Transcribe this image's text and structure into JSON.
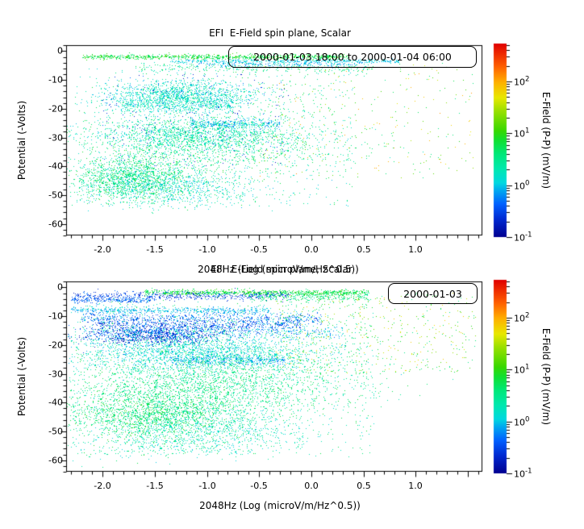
{
  "window": {
    "background": "#ffffff",
    "frame_color": "#000000",
    "text_color": "#000000"
  },
  "colorbar": {
    "label": "E-Field (P-P) (mV/m)",
    "tick_exponents": [
      2,
      1,
      0,
      -1
    ],
    "tick_labels": [
      "10^2",
      "10^1",
      "10^0",
      "10^-1"
    ],
    "log_min": -1,
    "log_max": 2.73,
    "stops": [
      [
        0.0,
        "#000090"
      ],
      [
        0.09,
        "#0028d0"
      ],
      [
        0.17,
        "#0060ff"
      ],
      [
        0.24,
        "#00a8f0"
      ],
      [
        0.28,
        "#00d8e0"
      ],
      [
        0.35,
        "#00e8b0"
      ],
      [
        0.43,
        "#00e878"
      ],
      [
        0.5,
        "#10e030"
      ],
      [
        0.55,
        "#38d800"
      ],
      [
        0.65,
        "#98e000"
      ],
      [
        0.72,
        "#e8e800"
      ],
      [
        0.8,
        "#ffb000"
      ],
      [
        0.88,
        "#ff6000"
      ],
      [
        1.0,
        "#e00000"
      ]
    ]
  },
  "chart_data": [
    {
      "type": "scatter",
      "title": "EFI  E-Field spin plane, Scalar",
      "legend": "2000-01-03 18:00 to 2000-01-04 06:00",
      "xlabel": "2048Hz (Log (microV/m/Hz^0.5))",
      "ylabel": "Potential (-Volts)",
      "xlim": [
        -2.35,
        1.64
      ],
      "ylim": [
        -64,
        2.1
      ],
      "x_ticks": [
        -2.0,
        -1.5,
        -1.0,
        -0.5,
        0.0,
        0.5,
        1.0
      ],
      "x_tick_labels": [
        "-2.0",
        "-1.5",
        "-1.0",
        "-0.5",
        "0.0",
        "0.5",
        "1.0"
      ],
      "x_minor_step": 0.1,
      "y_ticks": [
        0,
        -10,
        -20,
        -30,
        -40,
        -50,
        -60
      ],
      "y_tick_labels": [
        "0",
        "-10",
        "-20",
        "-30",
        "-40",
        "-50",
        "-60"
      ],
      "y_minor_step": 2,
      "grid": false,
      "color_value": "log10 E-Field (P-P) mV/m",
      "point_clusters": [
        {
          "type": "band",
          "x0": -2.2,
          "x1": 0.35,
          "yc": -2.0,
          "ys": 0.45,
          "n": 850,
          "amp": [
            0.55,
            1.15
          ]
        },
        {
          "type": "band",
          "x0": -1.35,
          "x1": 0.85,
          "yc": -3.5,
          "ys": 0.35,
          "n": 420,
          "amp": [
            -0.15,
            0.25
          ]
        },
        {
          "type": "band",
          "x0": -1.1,
          "x1": 0.5,
          "yc": -4.6,
          "ys": 0.45,
          "n": 200,
          "amp": [
            -0.3,
            0.15
          ]
        },
        {
          "type": "band",
          "x0": -1.7,
          "x1": 0.6,
          "yc": -5.9,
          "ys": 1.0,
          "n": 300,
          "amp": [
            0.2,
            0.85
          ]
        },
        {
          "type": "gauss",
          "xc": -1.25,
          "xs": 0.38,
          "yc": -15.5,
          "ys": 2.6,
          "n": 1350,
          "amp": [
            -0.1,
            0.6
          ]
        },
        {
          "type": "band",
          "x0": -1.85,
          "x1": -0.75,
          "yc": -19.0,
          "ys": 1.2,
          "n": 380,
          "amp": [
            0.0,
            0.5
          ]
        },
        {
          "type": "band",
          "x0": -1.15,
          "x1": -0.3,
          "yc": -25.3,
          "ys": 0.9,
          "n": 330,
          "amp": [
            -0.3,
            0.3
          ]
        },
        {
          "type": "gauss",
          "xc": -1.15,
          "xs": 0.5,
          "yc": -29.0,
          "ys": 3.0,
          "n": 1250,
          "amp": [
            0.0,
            0.7
          ]
        },
        {
          "type": "gauss",
          "xc": -0.9,
          "xs": 0.65,
          "yc": -33.0,
          "ys": 5.0,
          "n": 1050,
          "amp": [
            0.2,
            0.9
          ]
        },
        {
          "type": "gauss",
          "xc": -1.72,
          "xs": 0.3,
          "yc": -44.0,
          "ys": 4.0,
          "n": 1450,
          "amp": [
            0.2,
            1.0
          ]
        },
        {
          "type": "gauss",
          "xc": -1.3,
          "xs": 0.4,
          "yc": -47.0,
          "ys": 3.5,
          "n": 800,
          "amp": [
            -0.1,
            0.6
          ]
        },
        {
          "type": "uniform",
          "x0": -0.55,
          "x1": 1.55,
          "y0": -44.0,
          "y1": -4.0,
          "n": 320,
          "amp": [
            0.5,
            2.1
          ]
        },
        {
          "type": "uniform",
          "x0": -2.25,
          "x1": 0.4,
          "y0": -54.0,
          "y1": -6.0,
          "n": 650,
          "amp": [
            0.0,
            0.9
          ]
        },
        {
          "type": "uniform",
          "x0": -2.0,
          "x1": -0.2,
          "y0": -40.0,
          "y1": -8.0,
          "n": 220,
          "amp": [
            -0.8,
            -0.25
          ]
        }
      ]
    },
    {
      "type": "scatter",
      "title": "EFI  E-Field spin plane, Scalar",
      "legend": "2000-01-03",
      "xlabel": "2048Hz (Log (microV/m/Hz^0.5))",
      "ylabel": "Potential (-Volts)",
      "xlim": [
        -2.35,
        1.64
      ],
      "ylim": [
        -64,
        2.1
      ],
      "x_ticks": [
        -2.0,
        -1.5,
        -1.0,
        -0.5,
        0.0,
        0.5,
        1.0
      ],
      "x_tick_labels": [
        "-2.0",
        "-1.5",
        "-1.0",
        "-0.5",
        "0.0",
        "0.5",
        "1.0"
      ],
      "x_minor_step": 0.1,
      "y_ticks": [
        0,
        -10,
        -20,
        -30,
        -40,
        -50,
        -60
      ],
      "y_tick_labels": [
        "0",
        "-10",
        "-20",
        "-30",
        "-40",
        "-50",
        "-60"
      ],
      "y_minor_step": 2,
      "grid": false,
      "color_value": "log10 E-Field (P-P) mV/m",
      "point_clusters": [
        {
          "type": "band",
          "x0": -1.6,
          "x1": 0.55,
          "yc": -1.8,
          "ys": 0.5,
          "n": 850,
          "amp": [
            0.55,
            1.1
          ]
        },
        {
          "type": "band",
          "x0": -2.3,
          "x1": -0.2,
          "yc": -2.9,
          "ys": 0.7,
          "n": 520,
          "amp": [
            -0.75,
            -0.25
          ]
        },
        {
          "type": "band",
          "x0": -0.6,
          "x1": 0.55,
          "yc": -3.3,
          "ys": 0.8,
          "n": 280,
          "amp": [
            0.35,
            0.9
          ]
        },
        {
          "type": "band",
          "x0": -2.3,
          "x1": -1.5,
          "yc": -4.4,
          "ys": 0.5,
          "n": 230,
          "amp": [
            -0.6,
            -0.1
          ]
        },
        {
          "type": "band",
          "x0": -2.3,
          "x1": -0.4,
          "yc": -8.0,
          "ys": 0.6,
          "n": 520,
          "amp": [
            -0.25,
            0.25
          ]
        },
        {
          "type": "band",
          "x0": -2.2,
          "x1": 0.1,
          "yc": -10.8,
          "ys": 1.0,
          "n": 620,
          "amp": [
            -0.6,
            0.1
          ]
        },
        {
          "type": "band",
          "x0": -2.05,
          "x1": -0.1,
          "yc": -13.1,
          "ys": 1.2,
          "n": 600,
          "amp": [
            -0.75,
            -0.1
          ]
        },
        {
          "type": "gauss",
          "xc": -1.5,
          "xs": 0.33,
          "yc": -16.5,
          "ys": 1.8,
          "n": 950,
          "amp": [
            -0.85,
            -0.3
          ]
        },
        {
          "type": "band",
          "x0": -2.2,
          "x1": 0.3,
          "yc": -15.6,
          "ys": 1.3,
          "n": 520,
          "amp": [
            -0.4,
            0.3
          ]
        },
        {
          "type": "gauss",
          "xc": -1.1,
          "xs": 0.6,
          "yc": -22.5,
          "ys": 3.5,
          "n": 1900,
          "amp": [
            -0.1,
            0.5
          ]
        },
        {
          "type": "band",
          "x0": -1.35,
          "x1": -0.25,
          "yc": -25.2,
          "ys": 0.9,
          "n": 340,
          "amp": [
            -0.35,
            0.2
          ]
        },
        {
          "type": "gauss",
          "xc": -1.0,
          "xs": 0.7,
          "yc": -33.0,
          "ys": 5.5,
          "n": 2100,
          "amp": [
            0.25,
            0.85
          ]
        },
        {
          "type": "gauss",
          "xc": -1.5,
          "xs": 0.4,
          "yc": -44.0,
          "ys": 4.5,
          "n": 1600,
          "amp": [
            0.35,
            1.0
          ]
        },
        {
          "type": "gauss",
          "xc": -1.05,
          "xs": 0.5,
          "yc": -48.0,
          "ys": 4.0,
          "n": 850,
          "amp": [
            0.0,
            0.6
          ]
        },
        {
          "type": "uniform",
          "x0": -0.35,
          "x1": 1.6,
          "y0": -30.0,
          "y1": -2.0,
          "n": 520,
          "amp": [
            0.5,
            1.9
          ]
        },
        {
          "type": "uniform",
          "x0": -2.3,
          "x1": 0.6,
          "y0": -58.0,
          "y1": -4.0,
          "n": 1050,
          "amp": [
            0.1,
            0.9
          ]
        },
        {
          "type": "gauss",
          "xc": -1.4,
          "xs": 0.5,
          "yc": -55.0,
          "ys": 2.5,
          "n": 320,
          "amp": [
            0.0,
            0.7
          ]
        }
      ]
    }
  ]
}
